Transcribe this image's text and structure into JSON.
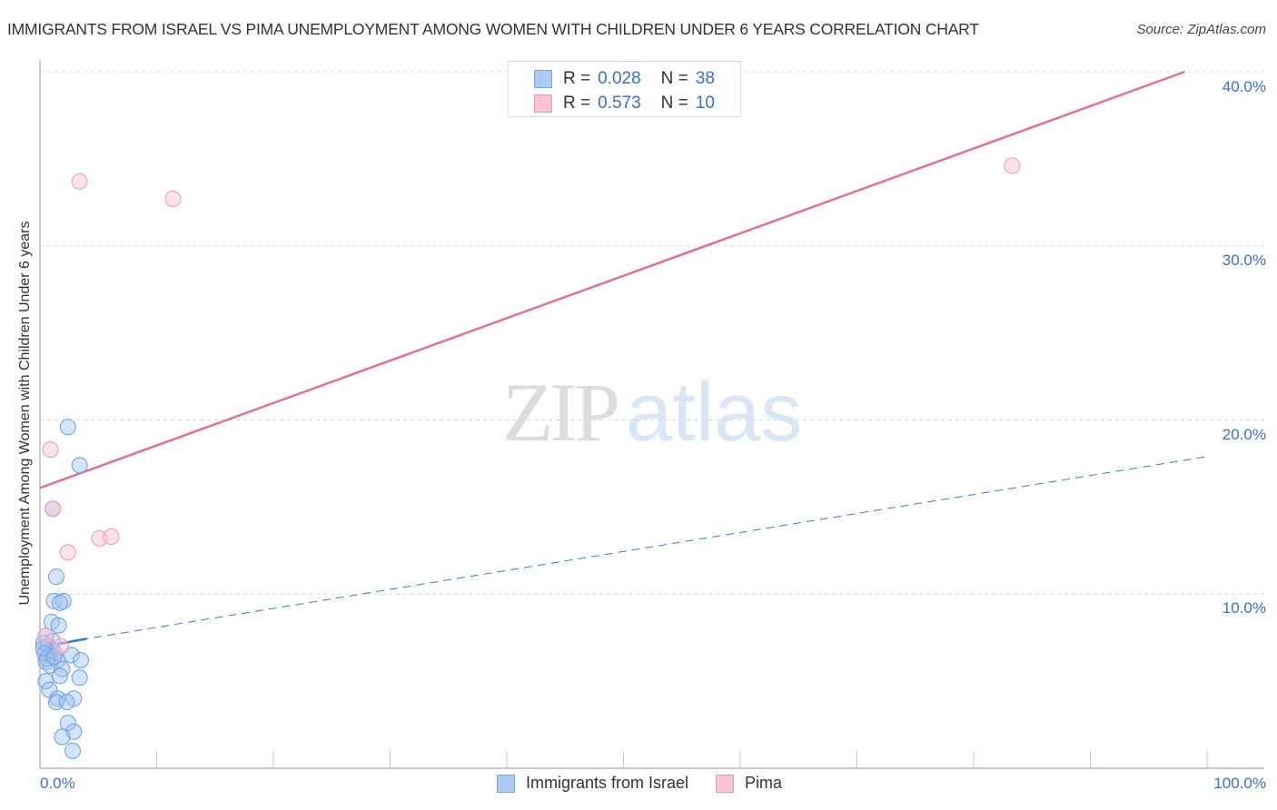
{
  "header": {
    "title": "IMMIGRANTS FROM ISRAEL VS PIMA UNEMPLOYMENT AMONG WOMEN WITH CHILDREN UNDER 6 YEARS CORRELATION CHART",
    "source": "Source: ZipAtlas.com"
  },
  "watermark": {
    "zip": "ZIP",
    "atlas": "atlas"
  },
  "legend": {
    "rows": [
      {
        "r_label": "R = ",
        "r_value": "0.028",
        "n_label": "N = ",
        "n_value": "38",
        "color": "#aecbf2",
        "border": "#7aa6e0"
      },
      {
        "r_label": "R = ",
        "r_value": "0.573",
        "n_label": "N = ",
        "n_value": "10",
        "color": "#f9c5d5",
        "border": "#eb9ab4"
      }
    ]
  },
  "axes": {
    "ylabel": "Unemployment Among Women with Children Under 6 years",
    "y_ticks": [
      "40.0%",
      "30.0%",
      "20.0%",
      "10.0%"
    ],
    "x_ticks": {
      "left": "0.0%",
      "right": "100.0%"
    }
  },
  "bottom_legend": {
    "items": [
      {
        "label": "Immigrants from Israel",
        "color": "#aecbf2",
        "border": "#7aa6e0"
      },
      {
        "label": "Pima",
        "color": "#f9c5d5",
        "border": "#eb9ab4"
      }
    ]
  },
  "colors": {
    "blue_point_fill": "rgba(160,195,240,0.45)",
    "blue_point_stroke": "#6b9de0",
    "pink_point_fill": "rgba(249,197,213,0.5)",
    "pink_point_stroke": "#eb9ab4",
    "pink_line": "#e0709a",
    "blue_line": "#3a78d4",
    "grid": "#d6d9df",
    "axis": "#aaaaaa",
    "tick_label": "#3a6fcf"
  },
  "chart_data": {
    "type": "scatter",
    "title": "IMMIGRANTS FROM ISRAEL VS PIMA UNEMPLOYMENT AMONG WOMEN WITH CHILDREN UNDER 6 YEARS CORRELATION CHART",
    "xlabel": "",
    "ylabel": "Unemployment Among Women with Children Under 6 years",
    "xlim": [
      0,
      100
    ],
    "ylim": [
      0,
      40
    ],
    "x_tick_labels": [
      "0.0%",
      "100.0%"
    ],
    "y_tick_labels": [
      "10.0%",
      "20.0%",
      "30.0%",
      "40.0%"
    ],
    "grid": true,
    "legend_position": "top-center",
    "series": [
      {
        "name": "Immigrants from Israel",
        "R": 0.028,
        "N": 38,
        "points": [
          [
            2.4,
            19.6
          ],
          [
            3.4,
            17.4
          ],
          [
            1.1,
            14.9
          ],
          [
            1.4,
            11.0
          ],
          [
            1.2,
            9.6
          ],
          [
            2.0,
            9.6
          ],
          [
            1.7,
            9.5
          ],
          [
            1.0,
            8.4
          ],
          [
            1.6,
            8.2
          ],
          [
            0.5,
            7.6
          ],
          [
            0.3,
            7.2
          ],
          [
            0.7,
            7.0
          ],
          [
            1.0,
            6.8
          ],
          [
            0.4,
            6.6
          ],
          [
            0.8,
            6.5
          ],
          [
            1.3,
            6.6
          ],
          [
            2.7,
            6.5
          ],
          [
            3.5,
            6.2
          ],
          [
            0.5,
            6.1
          ],
          [
            1.5,
            6.2
          ],
          [
            0.9,
            5.9
          ],
          [
            1.9,
            5.7
          ],
          [
            1.7,
            5.3
          ],
          [
            3.4,
            5.2
          ],
          [
            0.5,
            5.0
          ],
          [
            0.8,
            4.5
          ],
          [
            1.5,
            4.0
          ],
          [
            2.9,
            4.0
          ],
          [
            1.4,
            3.8
          ],
          [
            2.3,
            3.8
          ],
          [
            2.4,
            2.6
          ],
          [
            2.9,
            2.1
          ],
          [
            1.9,
            1.8
          ],
          [
            2.8,
            1.0
          ],
          [
            0.6,
            6.3
          ],
          [
            1.1,
            7.3
          ],
          [
            0.3,
            6.9
          ],
          [
            1.2,
            6.4
          ]
        ],
        "trendline": {
          "style": "dashed",
          "x": [
            0,
            100
          ],
          "y": [
            7.0,
            17.9
          ]
        }
      },
      {
        "name": "Pima",
        "R": 0.573,
        "N": 10,
        "points": [
          [
            3.4,
            33.7
          ],
          [
            11.4,
            32.7
          ],
          [
            83.3,
            34.6
          ],
          [
            0.9,
            18.3
          ],
          [
            1.1,
            14.9
          ],
          [
            5.1,
            13.2
          ],
          [
            6.1,
            13.3
          ],
          [
            2.4,
            12.4
          ],
          [
            1.8,
            7.0
          ],
          [
            0.5,
            7.6
          ]
        ],
        "trendline": {
          "style": "solid",
          "x": [
            0,
            98.1
          ],
          "y": [
            16.1,
            40.0
          ]
        }
      }
    ]
  }
}
